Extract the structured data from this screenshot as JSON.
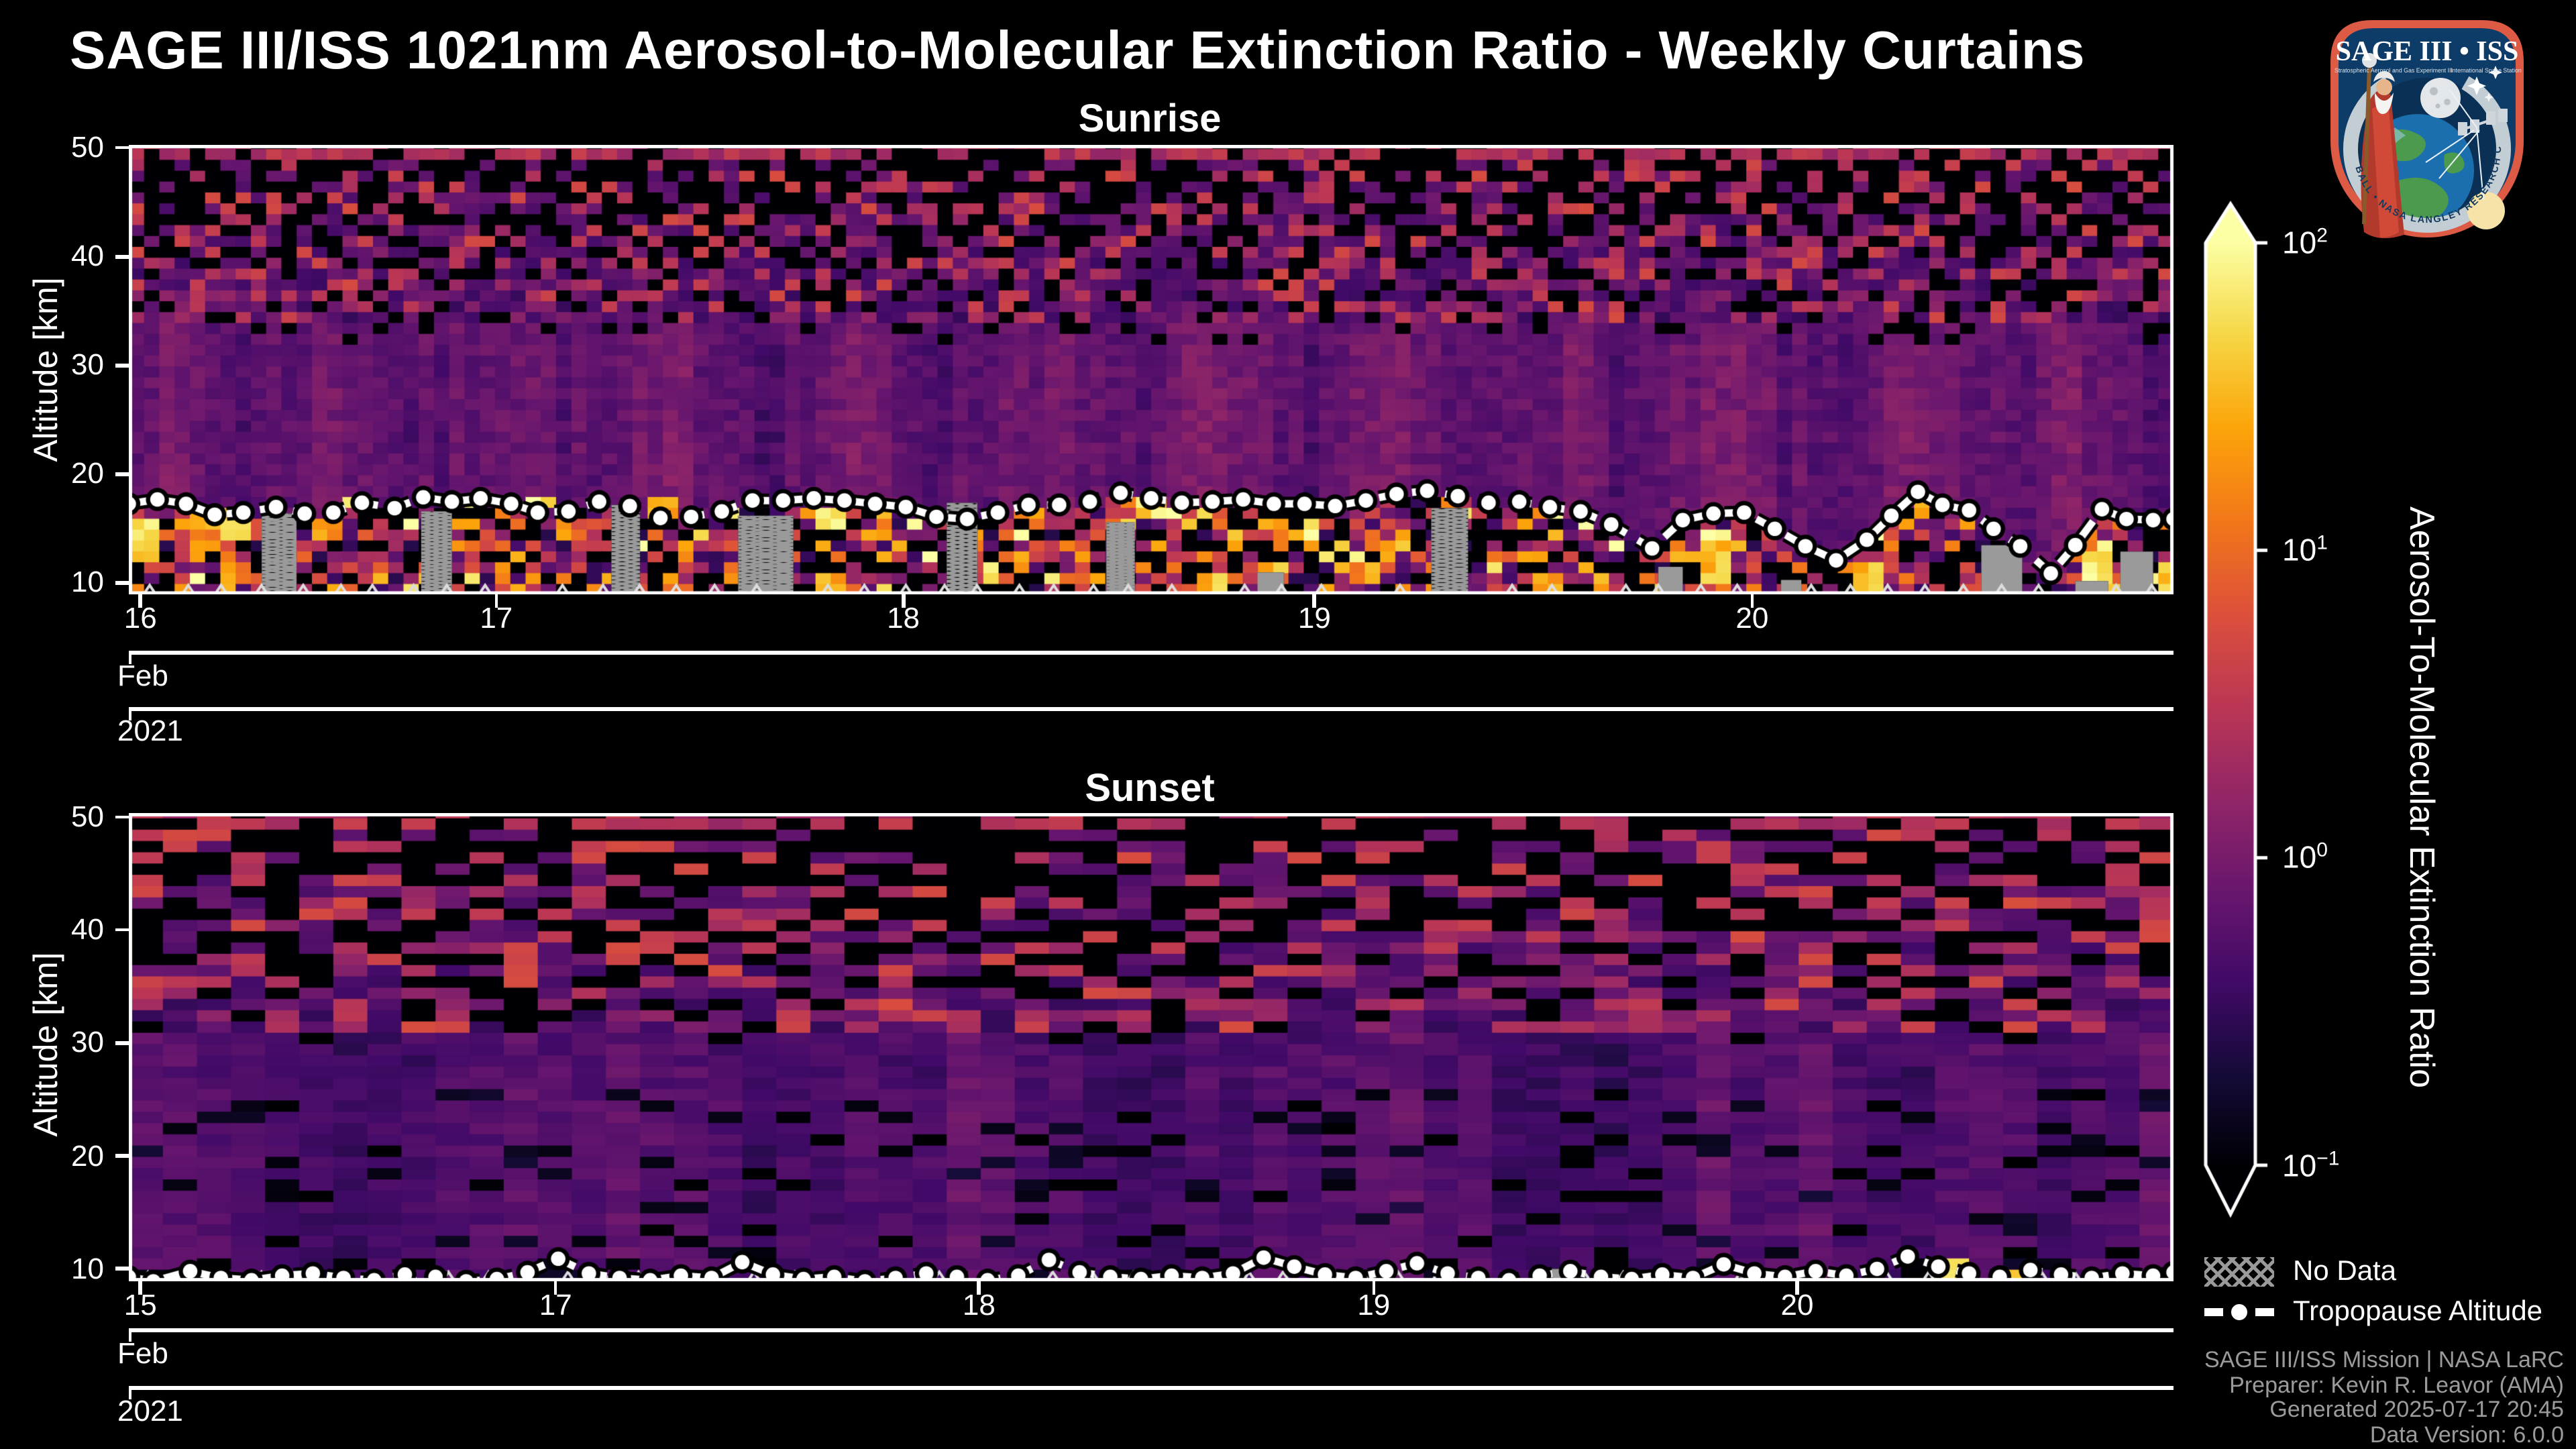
{
  "title": "SAGE III/ISS 1021nm Aerosol-to-Molecular Extinction Ratio - Weekly Curtains",
  "logo": {
    "name": "SAGE III • ISS",
    "subtitle_left": "Stratospheric Aerosol and Gas Experiment III",
    "subtitle_right": "International Space Station",
    "ring_text": "BALL • NASA LANGLEY RESEARCH CENTER • TAS-I • ESA"
  },
  "legend": {
    "no_data": "No Data",
    "tropopause": "Tropopause Altitude"
  },
  "credits": {
    "line1": "SAGE III/ISS Mission | NASA LaRC",
    "line2": "Preparer: Kevin R. Leavor (AMA)",
    "line3": "Generated 2025-07-17 20:45",
    "line4": "Data Version: 6.0.0"
  },
  "colorbar": {
    "label": "Aerosol-To-Molecular Extinction Ratio",
    "scale": "log10",
    "colormap": "inferno",
    "extend": "both",
    "tick_exponents": [
      2,
      1,
      0,
      -1
    ],
    "range_log10": [
      -1,
      2
    ]
  },
  "chart_data": [
    {
      "id": "sunrise",
      "type": "heatmap",
      "title": "Sunrise",
      "ylabel": "Altitude [km]",
      "ylim": [
        8.95,
        50.3
      ],
      "yticks": [
        10,
        20,
        30,
        40,
        50
      ],
      "xticks": [
        {
          "pos": 0.006,
          "label": "16"
        },
        {
          "pos": 0.18,
          "label": "17"
        },
        {
          "pos": 0.379,
          "label": "18"
        },
        {
          "pos": 0.58,
          "label": "19"
        },
        {
          "pos": 0.794,
          "label": "20"
        }
      ],
      "x_sub_labels": [
        "Feb",
        "2021"
      ],
      "profile": [
        [
          50,
          -0.15
        ],
        [
          49,
          -0.5
        ],
        [
          47,
          -0.65
        ],
        [
          45,
          -0.7
        ],
        [
          43,
          -0.72
        ],
        [
          41,
          -0.7
        ],
        [
          39,
          -0.6
        ],
        [
          37,
          -0.48
        ],
        [
          35,
          -0.3
        ],
        [
          33,
          -0.05
        ],
        [
          31,
          0.3
        ],
        [
          29,
          0.58
        ],
        [
          27,
          0.75
        ],
        [
          25,
          0.85
        ],
        [
          23,
          0.92
        ],
        [
          21,
          0.9
        ],
        [
          19.5,
          0.82
        ],
        [
          18.5,
          0.72
        ],
        [
          18,
          0.65
        ],
        [
          16,
          0.52
        ],
        [
          14,
          0.45
        ],
        [
          12,
          0.45
        ],
        [
          10,
          0.48
        ],
        [
          9,
          0.5
        ]
      ],
      "tropopause": [
        [
          0.0,
          17.3
        ],
        [
          0.014,
          17.7
        ],
        [
          0.028,
          17.3
        ],
        [
          0.042,
          16.3
        ],
        [
          0.056,
          16.5
        ],
        [
          0.072,
          17.0
        ],
        [
          0.086,
          16.4
        ],
        [
          0.1,
          16.5
        ],
        [
          0.114,
          17.4
        ],
        [
          0.13,
          16.9
        ],
        [
          0.144,
          17.9
        ],
        [
          0.158,
          17.5
        ],
        [
          0.172,
          17.8
        ],
        [
          0.187,
          17.3
        ],
        [
          0.2,
          16.5
        ],
        [
          0.215,
          16.6
        ],
        [
          0.23,
          17.5
        ],
        [
          0.245,
          17.1
        ],
        [
          0.26,
          16.0
        ],
        [
          0.275,
          16.1
        ],
        [
          0.29,
          16.6
        ],
        [
          0.305,
          17.6
        ],
        [
          0.32,
          17.6
        ],
        [
          0.335,
          17.8
        ],
        [
          0.35,
          17.6
        ],
        [
          0.365,
          17.3
        ],
        [
          0.38,
          17.0
        ],
        [
          0.395,
          16.1
        ],
        [
          0.41,
          15.9
        ],
        [
          0.425,
          16.5
        ],
        [
          0.44,
          17.2
        ],
        [
          0.455,
          17.2
        ],
        [
          0.47,
          17.5
        ],
        [
          0.485,
          18.3
        ],
        [
          0.5,
          17.8
        ],
        [
          0.515,
          17.4
        ],
        [
          0.53,
          17.5
        ],
        [
          0.545,
          17.7
        ],
        [
          0.56,
          17.3
        ],
        [
          0.575,
          17.3
        ],
        [
          0.59,
          17.1
        ],
        [
          0.605,
          17.6
        ],
        [
          0.62,
          18.2
        ],
        [
          0.635,
          18.5
        ],
        [
          0.65,
          18.0
        ],
        [
          0.665,
          17.4
        ],
        [
          0.68,
          17.5
        ],
        [
          0.695,
          17.0
        ],
        [
          0.71,
          16.6
        ],
        [
          0.725,
          15.4
        ],
        [
          0.745,
          13.2
        ],
        [
          0.76,
          15.8
        ],
        [
          0.775,
          16.4
        ],
        [
          0.79,
          16.5
        ],
        [
          0.805,
          15.0
        ],
        [
          0.82,
          13.4
        ],
        [
          0.835,
          12.1
        ],
        [
          0.85,
          14.0
        ],
        [
          0.862,
          16.2
        ],
        [
          0.875,
          18.4
        ],
        [
          0.887,
          17.2
        ],
        [
          0.9,
          16.7
        ],
        [
          0.912,
          15.0
        ],
        [
          0.925,
          13.4
        ],
        [
          0.94,
          10.9
        ],
        [
          0.952,
          13.5
        ],
        [
          0.965,
          16.8
        ],
        [
          0.977,
          15.9
        ],
        [
          0.99,
          15.8
        ],
        [
          1.0,
          15.9
        ]
      ],
      "no_data_regions": [
        [
          0.065,
          0.082,
          16.4
        ],
        [
          0.143,
          0.158,
          16.6
        ],
        [
          0.236,
          0.25,
          17.2
        ],
        [
          0.298,
          0.325,
          16.2
        ],
        [
          0.4,
          0.415,
          17.4
        ],
        [
          0.478,
          0.492,
          15.6
        ],
        [
          0.552,
          0.565,
          11.0
        ],
        [
          0.637,
          0.655,
          16.9
        ],
        [
          0.748,
          0.76,
          11.5
        ],
        [
          0.808,
          0.818,
          10.3
        ],
        [
          0.906,
          0.926,
          13.5
        ],
        [
          0.952,
          0.968,
          10.2
        ],
        [
          0.974,
          0.99,
          12.9
        ]
      ],
      "hotspots": [
        [
          0.0,
          0.012,
          12.5,
          16,
          1.5,
          2.0
        ],
        [
          0.0,
          0.01,
          9,
          10,
          1.2,
          1.8
        ],
        [
          0.03,
          0.045,
          13.5,
          17,
          0.9,
          1.6
        ],
        [
          0.045,
          0.06,
          14,
          16.5,
          1.6,
          2.05
        ],
        [
          0.045,
          0.06,
          10.5,
          12,
          1.0,
          1.5
        ],
        [
          0.09,
          0.105,
          14.5,
          16,
          1.1,
          1.6
        ],
        [
          0.105,
          0.12,
          16.8,
          18,
          1.4,
          1.9
        ],
        [
          0.162,
          0.175,
          16.9,
          18.2,
          1.5,
          2.0
        ],
        [
          0.196,
          0.208,
          16.8,
          17.8,
          1.6,
          2.1
        ],
        [
          0.256,
          0.268,
          16.5,
          17.5,
          1.2,
          1.7
        ],
        [
          0.335,
          0.352,
          14.8,
          16.6,
          1.7,
          2.1
        ],
        [
          0.335,
          0.352,
          9.5,
          11,
          1.2,
          1.7
        ],
        [
          0.4,
          0.412,
          13.8,
          16,
          1.8,
          2.15
        ],
        [
          0.43,
          0.445,
          16.2,
          17.4,
          1.1,
          1.6
        ],
        [
          0.493,
          0.508,
          16,
          17.6,
          1.5,
          2.0
        ],
        [
          0.52,
          0.535,
          9,
          10.5,
          1.3,
          1.8
        ],
        [
          0.61,
          0.623,
          12.4,
          13.6,
          1.2,
          1.7
        ],
        [
          0.69,
          0.703,
          9,
          11,
          1.1,
          1.7
        ],
        [
          0.765,
          0.785,
          10,
          14.5,
          1.3,
          2.0
        ],
        [
          0.84,
          0.856,
          9,
          12,
          1.2,
          1.8
        ],
        [
          0.872,
          0.884,
          16.5,
          17.7,
          1.0,
          1.5
        ],
        [
          0.955,
          0.972,
          9.5,
          13,
          1.6,
          2.1
        ],
        [
          0.99,
          1.0,
          9,
          12,
          1.3,
          1.9
        ]
      ],
      "params": {
        "cols": 134,
        "seed": 7,
        "dropout_start": 32,
        "dropout_max": 0.66,
        "speckle_start": 34,
        "below_tropopause_mix": true,
        "top_row_red_prob": 0.72
      }
    },
    {
      "id": "sunset",
      "type": "heatmap",
      "title": "Sunset",
      "ylabel": "Altitude [km]",
      "ylim": [
        8.9,
        50.4
      ],
      "yticks": [
        10,
        20,
        30,
        40,
        50
      ],
      "xticks": [
        {
          "pos": 0.006,
          "label": "15"
        },
        {
          "pos": 0.209,
          "label": "17"
        },
        {
          "pos": 0.416,
          "label": "18"
        },
        {
          "pos": 0.609,
          "label": "19"
        },
        {
          "pos": 0.816,
          "label": "20"
        }
      ],
      "x_sub_labels": [
        "Feb",
        "2021"
      ],
      "profile": [
        [
          50,
          -0.3
        ],
        [
          49,
          -0.65
        ],
        [
          47,
          -0.8
        ],
        [
          45,
          -0.85
        ],
        [
          43,
          -0.9
        ],
        [
          40,
          -0.92
        ],
        [
          37,
          -0.9
        ],
        [
          34,
          -0.85
        ],
        [
          32,
          -0.75
        ],
        [
          30,
          -0.55
        ],
        [
          28,
          -0.3
        ],
        [
          26,
          -0.05
        ],
        [
          24,
          0.18
        ],
        [
          22,
          0.38
        ],
        [
          20,
          0.52
        ],
        [
          18,
          0.62
        ],
        [
          16,
          0.66
        ],
        [
          14,
          0.65
        ],
        [
          12,
          0.6
        ],
        [
          10,
          0.52
        ],
        [
          9,
          0.45
        ]
      ],
      "tropopause": [
        [
          0.0,
          9.3
        ],
        [
          0.012,
          8.9
        ],
        [
          0.03,
          9.8
        ],
        [
          0.045,
          9.2
        ],
        [
          0.06,
          9.0
        ],
        [
          0.075,
          9.4
        ],
        [
          0.09,
          9.6
        ],
        [
          0.105,
          9.2
        ],
        [
          0.12,
          9.0
        ],
        [
          0.135,
          9.5
        ],
        [
          0.15,
          9.3
        ],
        [
          0.165,
          8.9
        ],
        [
          0.18,
          9.1
        ],
        [
          0.195,
          9.7
        ],
        [
          0.21,
          10.9
        ],
        [
          0.225,
          9.6
        ],
        [
          0.24,
          9.2
        ],
        [
          0.255,
          9.0
        ],
        [
          0.27,
          9.4
        ],
        [
          0.285,
          9.2
        ],
        [
          0.3,
          10.6
        ],
        [
          0.315,
          9.5
        ],
        [
          0.33,
          9.1
        ],
        [
          0.345,
          9.3
        ],
        [
          0.36,
          8.9
        ],
        [
          0.375,
          9.2
        ],
        [
          0.39,
          9.6
        ],
        [
          0.405,
          9.3
        ],
        [
          0.42,
          9.0
        ],
        [
          0.435,
          9.4
        ],
        [
          0.45,
          10.8
        ],
        [
          0.465,
          9.7
        ],
        [
          0.48,
          9.3
        ],
        [
          0.495,
          9.1
        ],
        [
          0.51,
          9.4
        ],
        [
          0.525,
          9.2
        ],
        [
          0.54,
          9.6
        ],
        [
          0.555,
          11.0
        ],
        [
          0.57,
          10.2
        ],
        [
          0.585,
          9.5
        ],
        [
          0.6,
          9.2
        ],
        [
          0.615,
          9.8
        ],
        [
          0.63,
          10.5
        ],
        [
          0.645,
          9.6
        ],
        [
          0.66,
          9.2
        ],
        [
          0.675,
          9.0
        ],
        [
          0.69,
          9.4
        ],
        [
          0.705,
          9.8
        ],
        [
          0.72,
          9.3
        ],
        [
          0.735,
          9.1
        ],
        [
          0.75,
          9.5
        ],
        [
          0.765,
          9.2
        ],
        [
          0.78,
          10.4
        ],
        [
          0.795,
          9.6
        ],
        [
          0.81,
          9.3
        ],
        [
          0.825,
          9.8
        ],
        [
          0.84,
          9.4
        ],
        [
          0.855,
          10.0
        ],
        [
          0.87,
          11.1
        ],
        [
          0.885,
          10.2
        ],
        [
          0.9,
          9.6
        ],
        [
          0.915,
          9.3
        ],
        [
          0.93,
          9.9
        ],
        [
          0.945,
          9.5
        ],
        [
          0.96,
          9.2
        ],
        [
          0.975,
          9.6
        ],
        [
          0.99,
          9.4
        ],
        [
          1.0,
          9.7
        ]
      ],
      "no_data_regions": [
        [
          0.695,
          0.706,
          10.0
        ],
        [
          0.788,
          0.797,
          9.8
        ],
        [
          0.832,
          0.843,
          10.1
        ]
      ],
      "hotspots": [
        [
          0.0,
          0.008,
          9,
          9.6,
          1.6,
          2.0
        ],
        [
          0.296,
          0.308,
          9,
          9.8,
          1.1,
          1.6
        ],
        [
          0.755,
          0.768,
          9,
          9.6,
          1.0,
          1.5
        ],
        [
          0.878,
          0.898,
          9,
          10.6,
          1.5,
          1.95
        ],
        [
          0.925,
          0.94,
          9,
          10,
          1.4,
          1.8
        ],
        [
          0.995,
          1.0,
          9,
          9.8,
          1.5,
          1.9
        ]
      ],
      "params": {
        "cols": 60,
        "seed": 13,
        "dropout_start": 30,
        "dropout_max": 0.68,
        "speckle_start": 31,
        "below_tropopause_mix": false,
        "top_row_red_prob": 0.55
      }
    }
  ]
}
